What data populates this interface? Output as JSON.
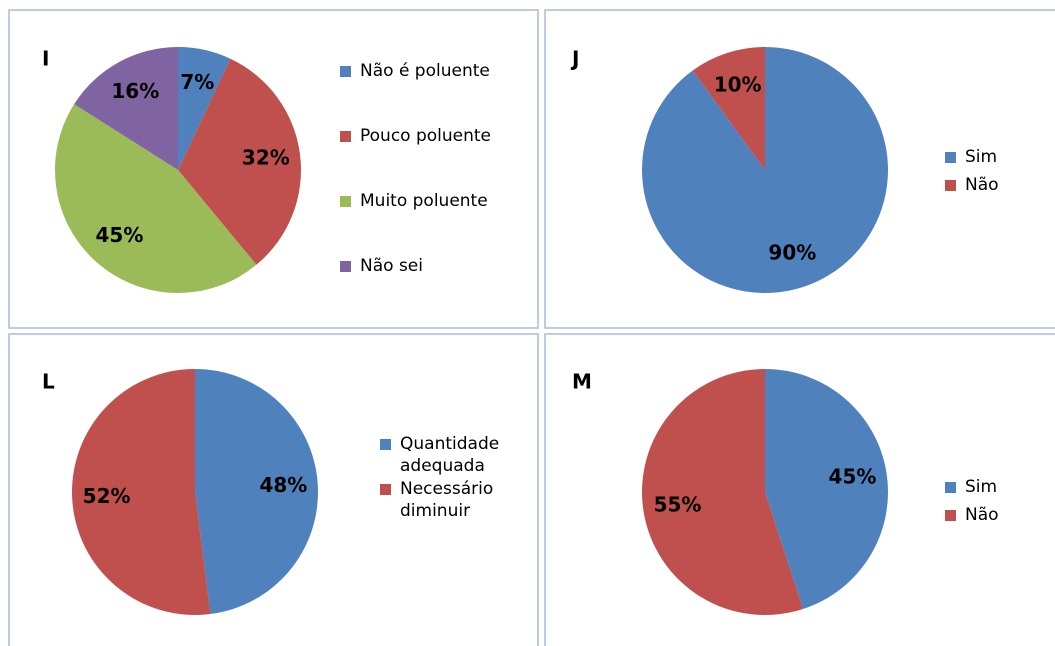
{
  "chart_data": [
    {
      "type": "pie",
      "title": "I",
      "categories": [
        "Não é poluente",
        "Pouco poluente",
        "Muito poluente",
        "Não sei"
      ],
      "values": [
        7,
        32,
        45,
        16
      ],
      "value_labels": [
        "7%",
        "32%",
        "45%",
        "16%"
      ],
      "colors": [
        "#4f81bd",
        "#c0504d",
        "#9bbb59",
        "#8064a2"
      ]
    },
    {
      "type": "pie",
      "title": "J",
      "categories": [
        "Sim",
        "Não"
      ],
      "values": [
        90,
        10
      ],
      "value_labels": [
        "90%",
        "10%"
      ],
      "colors": [
        "#4f81bd",
        "#c0504d"
      ]
    },
    {
      "type": "pie",
      "title": "L",
      "categories": [
        "Quantidade adequada",
        "Necessário diminuir"
      ],
      "values": [
        48,
        52
      ],
      "value_labels": [
        "48%",
        "52%"
      ],
      "colors": [
        "#4f81bd",
        "#c0504d"
      ]
    },
    {
      "type": "pie",
      "title": "M",
      "categories": [
        "Sim",
        "Não"
      ],
      "values": [
        45,
        55
      ],
      "value_labels": [
        "45%",
        "55%"
      ],
      "colors": [
        "#4f81bd",
        "#c0504d"
      ]
    }
  ]
}
